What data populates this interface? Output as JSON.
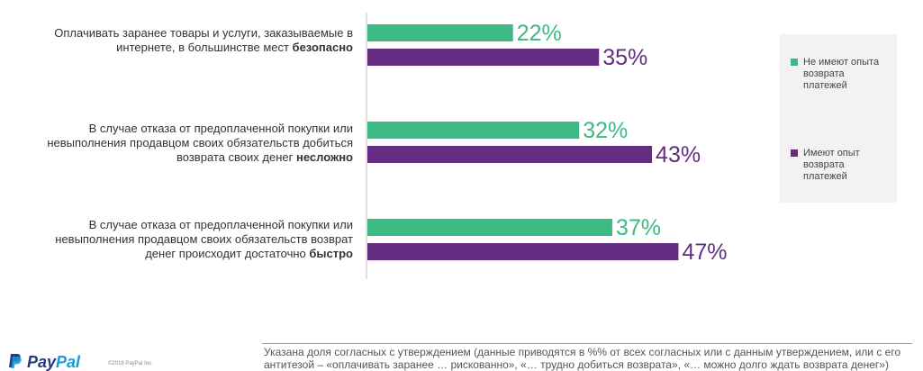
{
  "chart_data": {
    "type": "bar",
    "orientation": "horizontal",
    "categories": [
      {
        "text": "Оплачивать заранее товары и услуги, заказываемые в интернете, в большинстве мест ",
        "bold": "безопасно"
      },
      {
        "text": "В случае отказа от предоплаченной покупки или невыполнения продавцом своих обязательств добиться возврата своих денег ",
        "bold": "несложно"
      },
      {
        "text": "В случае отказа от предоплаченной покупки или невыполнения продавцом своих обязательств возврат денег происходит достаточно ",
        "bold": "быстро"
      }
    ],
    "series": [
      {
        "name": "Не имеют опыта возврата платежей",
        "color": "#3dba84",
        "values": [
          22,
          32,
          37
        ]
      },
      {
        "name": "Имеют опыт возврата платежей",
        "color": "#642d82",
        "values": [
          35,
          43,
          47
        ]
      }
    ],
    "value_suffix": "%",
    "xlim": [
      0,
      100
    ],
    "grid": false,
    "legend_position": "right"
  },
  "footer": {
    "logo_pay": "Pay",
    "logo_pal": "Pal",
    "copyright": "©2018 PayPal Inc.",
    "footnote": "Указана доля согласных с утверждением (данные приводятся в %% от всех согласных или с данным утверждением, или с его антитезой – «оплачивать заранее … рискованно», «… трудно добиться возврата», «… можно долго ждать возврата денег»)"
  }
}
